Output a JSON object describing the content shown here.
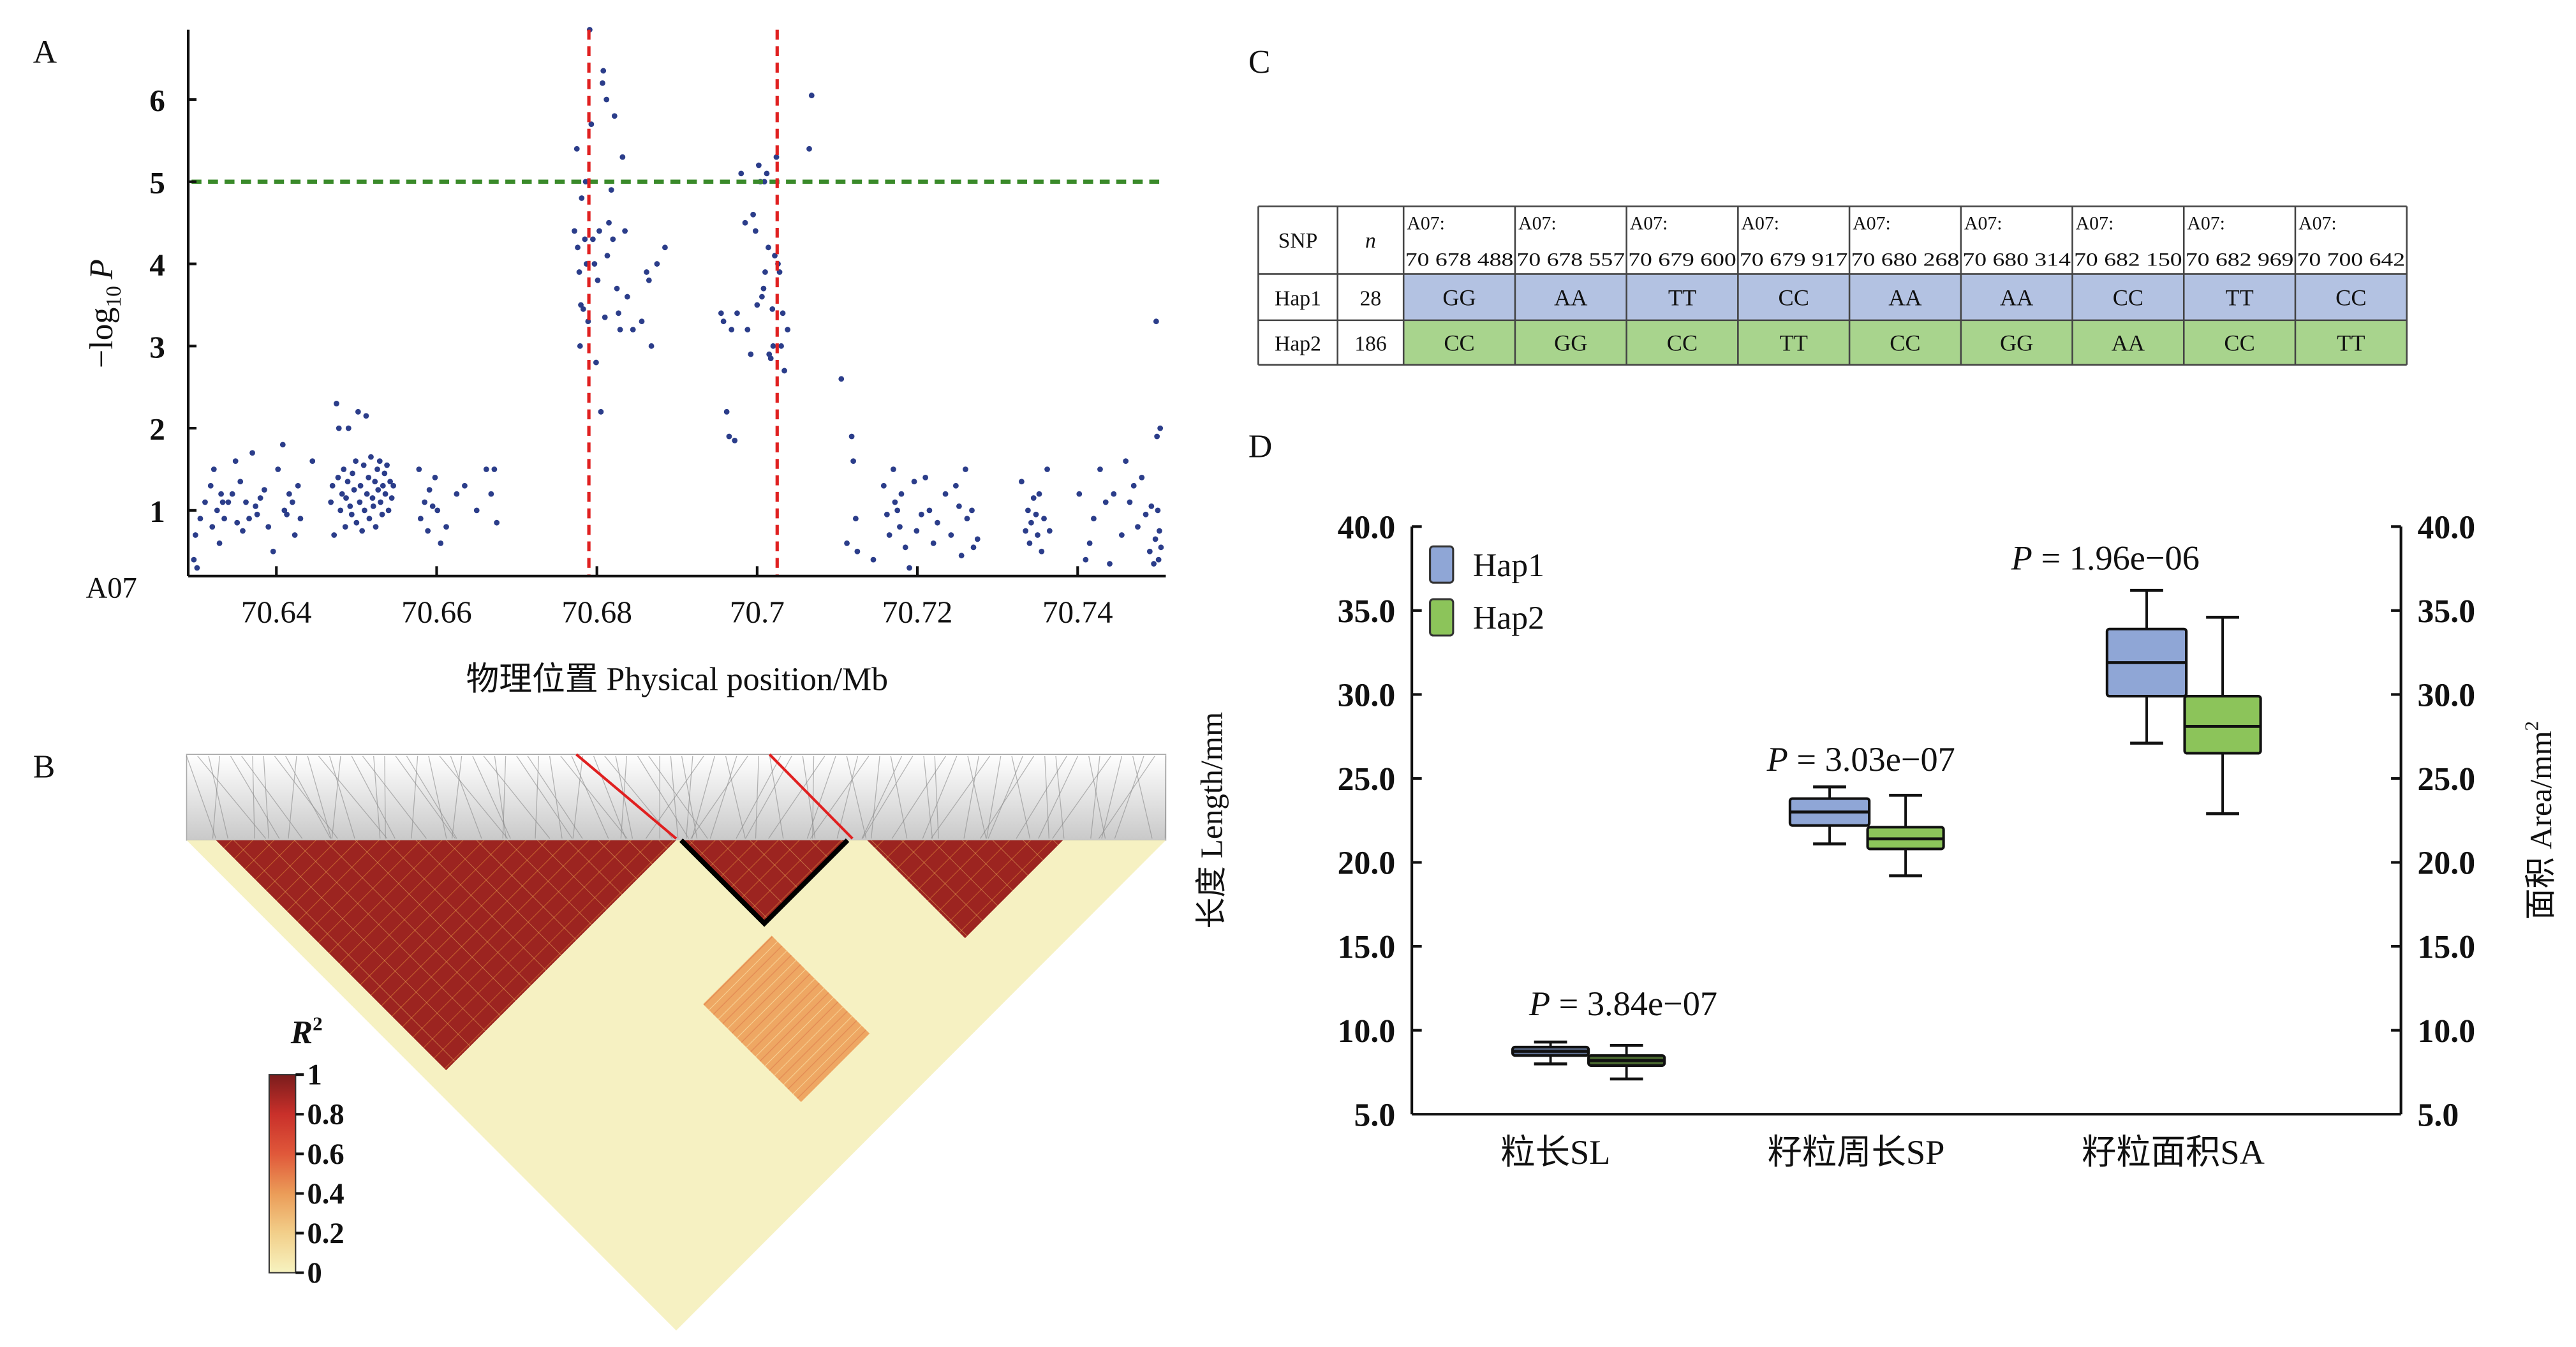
{
  "figure": {
    "panels": {
      "A": "A",
      "B": "B",
      "C": "C",
      "D": "D"
    }
  },
  "chart_data": [
    {
      "id": "A",
      "type": "scatter",
      "title": "",
      "chromosome_label": "A07",
      "xlabel": "物理位置 Physical position/Mb",
      "ylabel_prefix": "−log",
      "ylabel_sub": "10",
      "ylabel_var": "P",
      "xlim": [
        70.629,
        70.751
      ],
      "ylim": [
        0.2,
        6.85
      ],
      "xticks": [
        70.64,
        70.66,
        70.68,
        70.7,
        70.72,
        70.74
      ],
      "xtick_labels": [
        "70.64",
        "70.66",
        "70.68",
        "70.7",
        "70.72",
        "70.74"
      ],
      "yticks": [
        1,
        2,
        3,
        4,
        5,
        6
      ],
      "ytick_labels": [
        "1",
        "2",
        "3",
        "4",
        "5",
        "6"
      ],
      "threshold": {
        "y": 5,
        "color": "#3a8a2a",
        "style": "dashed"
      },
      "region_bounds": {
        "x": [
          70.679,
          70.7025
        ],
        "color": "#e02020",
        "style": "dashed"
      },
      "point_color": "#2b3d8a",
      "points": [
        [
          70.6297,
          0.4
        ],
        [
          70.6299,
          0.7
        ],
        [
          70.6301,
          0.3
        ],
        [
          70.6305,
          0.9
        ],
        [
          70.6311,
          1.1
        ],
        [
          70.6318,
          1.3
        ],
        [
          70.632,
          0.8
        ],
        [
          70.6322,
          1.5
        ],
        [
          70.6326,
          1.0
        ],
        [
          70.6329,
          0.6
        ],
        [
          70.6331,
          1.2
        ],
        [
          70.6333,
          1.1
        ],
        [
          70.6335,
          0.9
        ],
        [
          70.634,
          1.1
        ],
        [
          70.6345,
          1.2
        ],
        [
          70.6349,
          1.6
        ],
        [
          70.6351,
          0.85
        ],
        [
          70.6355,
          1.35
        ],
        [
          70.6358,
          0.75
        ],
        [
          70.6362,
          1.1
        ],
        [
          70.6366,
          0.9
        ],
        [
          70.637,
          1.7
        ],
        [
          70.6374,
          1.05
        ],
        [
          70.6376,
          0.95
        ],
        [
          70.638,
          1.15
        ],
        [
          70.6385,
          1.25
        ],
        [
          70.639,
          0.8
        ],
        [
          70.6396,
          0.5
        ],
        [
          70.6402,
          1.5
        ],
        [
          70.6408,
          1.8
        ],
        [
          70.641,
          1.0
        ],
        [
          70.6413,
          0.95
        ],
        [
          70.6416,
          1.2
        ],
        [
          70.642,
          1.1
        ],
        [
          70.6423,
          0.7
        ],
        [
          70.6427,
          1.3
        ],
        [
          70.643,
          0.9
        ],
        [
          70.6445,
          1.6
        ],
        [
          70.6468,
          1.1
        ],
        [
          70.647,
          1.3
        ],
        [
          70.6472,
          0.7
        ],
        [
          70.6475,
          2.3
        ],
        [
          70.6477,
          1.4
        ],
        [
          70.6478,
          2.0
        ],
        [
          70.648,
          1.0
        ],
        [
          70.6482,
          1.2
        ],
        [
          70.6484,
          1.5
        ],
        [
          70.6486,
          0.8
        ],
        [
          70.6487,
          1.15
        ],
        [
          70.6489,
          1.35
        ],
        [
          70.649,
          2.0
        ],
        [
          70.6492,
          1.05
        ],
        [
          70.6494,
          0.95
        ],
        [
          70.6495,
          1.45
        ],
        [
          70.6497,
          1.25
        ],
        [
          70.6499,
          1.6
        ],
        [
          70.65,
          0.85
        ],
        [
          70.6502,
          2.2
        ],
        [
          70.6504,
          1.1
        ],
        [
          70.6505,
          1.3
        ],
        [
          70.6507,
          0.75
        ],
        [
          70.6509,
          1.55
        ],
        [
          70.651,
          1.0
        ],
        [
          70.6512,
          2.15
        ],
        [
          70.6513,
          1.2
        ],
        [
          70.6515,
          1.4
        ],
        [
          70.6516,
          0.9
        ],
        [
          70.6518,
          1.65
        ],
        [
          70.652,
          1.15
        ],
        [
          70.6521,
          1.05
        ],
        [
          70.6523,
          1.35
        ],
        [
          70.6524,
          0.8
        ],
        [
          70.6526,
          1.5
        ],
        [
          70.6527,
          1.25
        ],
        [
          70.6529,
          1.6
        ],
        [
          70.653,
          1.1
        ],
        [
          70.6532,
          0.95
        ],
        [
          70.6533,
          1.3
        ],
        [
          70.6535,
          1.45
        ],
        [
          70.6536,
          1.2
        ],
        [
          70.6538,
          1.55
        ],
        [
          70.654,
          1.0
        ],
        [
          70.6542,
          1.35
        ],
        [
          70.6544,
          1.15
        ],
        [
          70.6546,
          1.3
        ],
        [
          70.6578,
          1.5
        ],
        [
          70.658,
          0.9
        ],
        [
          70.6585,
          1.1
        ],
        [
          70.6589,
          0.75
        ],
        [
          70.6591,
          1.25
        ],
        [
          70.6595,
          1.05
        ],
        [
          70.6598,
          1.4
        ],
        [
          70.6601,
          1.0
        ],
        [
          70.6605,
          0.6
        ],
        [
          70.6612,
          0.8
        ],
        [
          70.6625,
          1.2
        ],
        [
          70.6635,
          1.3
        ],
        [
          70.665,
          1.0
        ],
        [
          70.6662,
          1.5
        ],
        [
          70.6668,
          1.2
        ],
        [
          70.6672,
          1.5
        ],
        [
          70.6675,
          0.85
        ],
        [
          70.6772,
          4.4
        ],
        [
          70.6775,
          5.4
        ],
        [
          70.6776,
          4.2
        ],
        [
          70.6778,
          3.9
        ],
        [
          70.6779,
          3.0
        ],
        [
          70.678,
          3.5
        ],
        [
          70.6781,
          4.8
        ],
        [
          70.6783,
          3.45
        ],
        [
          70.6785,
          4.3
        ],
        [
          70.6786,
          5.0
        ],
        [
          70.6787,
          4.0
        ],
        [
          70.6789,
          3.3
        ],
        [
          70.6791,
          6.85
        ],
        [
          70.6793,
          5.7
        ],
        [
          70.6795,
          4.3
        ],
        [
          70.6797,
          4.0
        ],
        [
          70.6799,
          2.8
        ],
        [
          70.6801,
          3.8
        ],
        [
          70.6803,
          4.4
        ],
        [
          70.6805,
          2.2
        ],
        [
          70.6807,
          6.2
        ],
        [
          70.6808,
          6.35
        ],
        [
          70.681,
          3.35
        ],
        [
          70.6812,
          6.0
        ],
        [
          70.6813,
          4.1
        ],
        [
          70.6815,
          4.5
        ],
        [
          70.6818,
          4.9
        ],
        [
          70.682,
          4.3
        ],
        [
          70.6822,
          5.8
        ],
        [
          70.6825,
          3.7
        ],
        [
          70.6827,
          3.4
        ],
        [
          70.6829,
          3.2
        ],
        [
          70.6832,
          5.3
        ],
        [
          70.6835,
          4.4
        ],
        [
          70.6838,
          3.6
        ],
        [
          70.6845,
          3.2
        ],
        [
          70.6856,
          3.3
        ],
        [
          70.6862,
          3.9
        ],
        [
          70.6865,
          3.8
        ],
        [
          70.6868,
          3.0
        ],
        [
          70.6875,
          4.0
        ],
        [
          70.6885,
          4.2
        ],
        [
          70.6955,
          3.4
        ],
        [
          70.6958,
          3.3
        ],
        [
          70.6962,
          2.2
        ],
        [
          70.6965,
          1.9
        ],
        [
          70.6968,
          3.2
        ],
        [
          70.6972,
          1.85
        ],
        [
          70.6975,
          3.4
        ],
        [
          70.698,
          5.1
        ],
        [
          70.6985,
          4.5
        ],
        [
          70.6988,
          3.2
        ],
        [
          70.6992,
          2.9
        ],
        [
          70.6995,
          4.6
        ],
        [
          70.6998,
          4.4
        ],
        [
          70.7,
          3.5
        ],
        [
          70.7002,
          5.2
        ],
        [
          70.7004,
          5.0
        ],
        [
          70.7006,
          3.6
        ],
        [
          70.7008,
          3.7
        ],
        [
          70.7009,
          5.0
        ],
        [
          70.701,
          3.9
        ],
        [
          70.7012,
          5.1
        ],
        [
          70.7014,
          4.2
        ],
        [
          70.7015,
          2.9
        ],
        [
          70.7017,
          2.85
        ],
        [
          70.7019,
          3.45
        ],
        [
          70.702,
          3.0
        ],
        [
          70.7022,
          4.1
        ],
        [
          70.7024,
          5.3
        ],
        [
          70.7026,
          4.0
        ],
        [
          70.7028,
          3.9
        ],
        [
          70.703,
          3.0
        ],
        [
          70.7032,
          3.4
        ],
        [
          70.7034,
          2.7
        ],
        [
          70.7038,
          3.2
        ],
        [
          70.7065,
          5.4
        ],
        [
          70.7068,
          6.05
        ],
        [
          70.7105,
          2.6
        ],
        [
          70.7112,
          0.6
        ],
        [
          70.7118,
          1.9
        ],
        [
          70.712,
          1.6
        ],
        [
          70.7123,
          0.9
        ],
        [
          70.7125,
          0.5
        ],
        [
          70.7145,
          0.4
        ],
        [
          70.7158,
          1.3
        ],
        [
          70.7162,
          0.95
        ],
        [
          70.7165,
          0.7
        ],
        [
          70.717,
          1.5
        ],
        [
          70.7172,
          1.1
        ],
        [
          70.7175,
          1.0
        ],
        [
          70.7178,
          0.8
        ],
        [
          70.718,
          1.2
        ],
        [
          70.7185,
          0.55
        ],
        [
          70.719,
          0.3
        ],
        [
          70.7196,
          1.35
        ],
        [
          70.7199,
          0.75
        ],
        [
          70.7205,
          0.95
        ],
        [
          70.721,
          1.4
        ],
        [
          70.7215,
          1.0
        ],
        [
          70.722,
          0.6
        ],
        [
          70.7225,
          0.85
        ],
        [
          70.7235,
          1.2
        ],
        [
          70.7242,
          0.7
        ],
        [
          70.7248,
          1.3
        ],
        [
          70.7252,
          1.05
        ],
        [
          70.7255,
          0.45
        ],
        [
          70.726,
          1.5
        ],
        [
          70.7262,
          0.9
        ],
        [
          70.7268,
          1.0
        ],
        [
          70.727,
          0.55
        ],
        [
          70.7275,
          0.65
        ],
        [
          70.733,
          1.35
        ],
        [
          70.7335,
          0.75
        ],
        [
          70.7338,
          1.0
        ],
        [
          70.734,
          0.6
        ],
        [
          70.7342,
          0.85
        ],
        [
          70.7345,
          1.15
        ],
        [
          70.7348,
          0.95
        ],
        [
          70.735,
          0.7
        ],
        [
          70.7352,
          1.2
        ],
        [
          70.7355,
          0.5
        ],
        [
          70.7358,
          0.9
        ],
        [
          70.7362,
          1.5
        ],
        [
          70.7365,
          0.75
        ],
        [
          70.7402,
          1.2
        ],
        [
          70.741,
          0.4
        ],
        [
          70.7415,
          0.6
        ],
        [
          70.742,
          0.9
        ],
        [
          70.7428,
          1.5
        ],
        [
          70.7435,
          1.1
        ],
        [
          70.744,
          0.35
        ],
        [
          70.7445,
          1.2
        ],
        [
          70.7455,
          0.7
        ],
        [
          70.746,
          1.6
        ],
        [
          70.7465,
          1.1
        ],
        [
          70.747,
          1.3
        ],
        [
          70.7475,
          0.8
        ],
        [
          70.748,
          1.4
        ],
        [
          70.7485,
          0.95
        ],
        [
          70.749,
          0.5
        ],
        [
          70.7492,
          1.05
        ],
        [
          70.7495,
          0.35
        ],
        [
          70.7497,
          0.65
        ],
        [
          70.7498,
          3.3
        ],
        [
          70.7499,
          1.9
        ],
        [
          70.75,
          1.0
        ],
        [
          70.7501,
          0.4
        ],
        [
          70.7502,
          0.75
        ],
        [
          70.7503,
          2.0
        ],
        [
          70.7504,
          0.55
        ]
      ]
    },
    {
      "id": "B",
      "type": "heatmap",
      "title": "LD heatmap",
      "colorbar_title_var": "R",
      "colorbar_title_sup": "2",
      "colorbar_ticks": [
        0,
        0.2,
        0.4,
        0.6,
        0.8,
        1
      ],
      "colorbar_tick_labels": [
        "0",
        "0.2",
        "0.4",
        "0.6",
        "0.8",
        "1"
      ],
      "colorbar_colors": [
        "#f7f3c0",
        "#f2b768",
        "#e8744a",
        "#d93a2c",
        "#b9241f",
        "#7a1c1c"
      ],
      "blocks": [
        {
          "name": "block-1",
          "start": 0.03,
          "end": 0.5,
          "r2": 0.95
        },
        {
          "name": "block-2-highlighted",
          "start": 0.505,
          "end": 0.675,
          "r2": 0.97,
          "highlight": true
        },
        {
          "name": "block-3",
          "start": 0.695,
          "end": 0.895,
          "r2": 0.93
        },
        {
          "name": "block-cross-1-3",
          "start": 0.36,
          "end": 0.69,
          "r2": 0.35,
          "cross": true
        }
      ],
      "highlight_region_fraction": [
        0.5,
        0.68
      ]
    },
    {
      "id": "C",
      "type": "table",
      "headers": [
        "SNP",
        "n",
        "A07:\n70 678 488",
        "A07:\n70 678 557",
        "A07:\n70 679 600",
        "A07:\n70 679 917",
        "A07:\n70 680 268",
        "A07:\n70 680 314",
        "A07:\n70 682 150",
        "A07:\n70 682 969",
        "A07:\n70 700 642"
      ],
      "snp_chrom": "A07:",
      "snp_positions": [
        "70 678 488",
        "70 678 557",
        "70 679 600",
        "70 679 917",
        "70 680 268",
        "70 680 314",
        "70 682 150",
        "70 682 969",
        "70 700 642"
      ],
      "rows": [
        {
          "hap": "Hap1",
          "n": "28",
          "color": "#b3c2e2",
          "genotypes": [
            "GG",
            "AA",
            "TT",
            "CC",
            "AA",
            "AA",
            "CC",
            "TT",
            "CC"
          ]
        },
        {
          "hap": "Hap2",
          "n": "186",
          "color": "#a8d48d",
          "genotypes": [
            "CC",
            "GG",
            "CC",
            "TT",
            "CC",
            "GG",
            "AA",
            "CC",
            "TT"
          ]
        }
      ],
      "col_header_snp": "SNP",
      "col_header_n": "n"
    },
    {
      "id": "D",
      "type": "box",
      "title": "",
      "ylabel_left": "长度 Length/mm",
      "ylabel_right_main": "面积 Area/mm",
      "ylabel_right_sup": "2",
      "ylim": [
        5.0,
        40.0
      ],
      "yticks": [
        5.0,
        10.0,
        15.0,
        20.0,
        25.0,
        30.0,
        35.0,
        40.0
      ],
      "ytick_labels": [
        "5.0",
        "10.0",
        "15.0",
        "20.0",
        "25.0",
        "30.0",
        "35.0",
        "40.0"
      ],
      "categories": [
        "粒长SL",
        "籽粒周长SP",
        "籽粒面积SA"
      ],
      "legend": [
        {
          "name": "Hap1",
          "color": "#8fa6d6"
        },
        {
          "name": "Hap2",
          "color": "#8cc45a"
        }
      ],
      "p_values": [
        "3.84e−07",
        "3.03e−07",
        "1.96e−06"
      ],
      "p_var": "P",
      "series": [
        {
          "name": "Hap1",
          "color": "#8fa6d6",
          "boxes": [
            {
              "whisker_low": 8.0,
              "q1": 8.5,
              "median": 8.75,
              "q3": 9.0,
              "whisker_high": 9.3,
              "color": "#5a6a8a"
            },
            {
              "whisker_low": 21.1,
              "q1": 22.2,
              "median": 23.0,
              "q3": 23.8,
              "whisker_high": 24.5
            },
            {
              "whisker_low": 27.1,
              "q1": 29.9,
              "median": 31.9,
              "q3": 33.9,
              "whisker_high": 36.2
            }
          ]
        },
        {
          "name": "Hap2",
          "color": "#8cc45a",
          "boxes": [
            {
              "whisker_low": 7.1,
              "q1": 7.9,
              "median": 8.2,
              "q3": 8.5,
              "whisker_high": 9.1,
              "color": "#4a6a30"
            },
            {
              "whisker_low": 19.2,
              "q1": 20.8,
              "median": 21.4,
              "q3": 22.1,
              "whisker_high": 24.0
            },
            {
              "whisker_low": 22.9,
              "q1": 26.5,
              "median": 28.1,
              "q3": 29.9,
              "whisker_high": 34.6
            }
          ]
        }
      ]
    }
  ]
}
